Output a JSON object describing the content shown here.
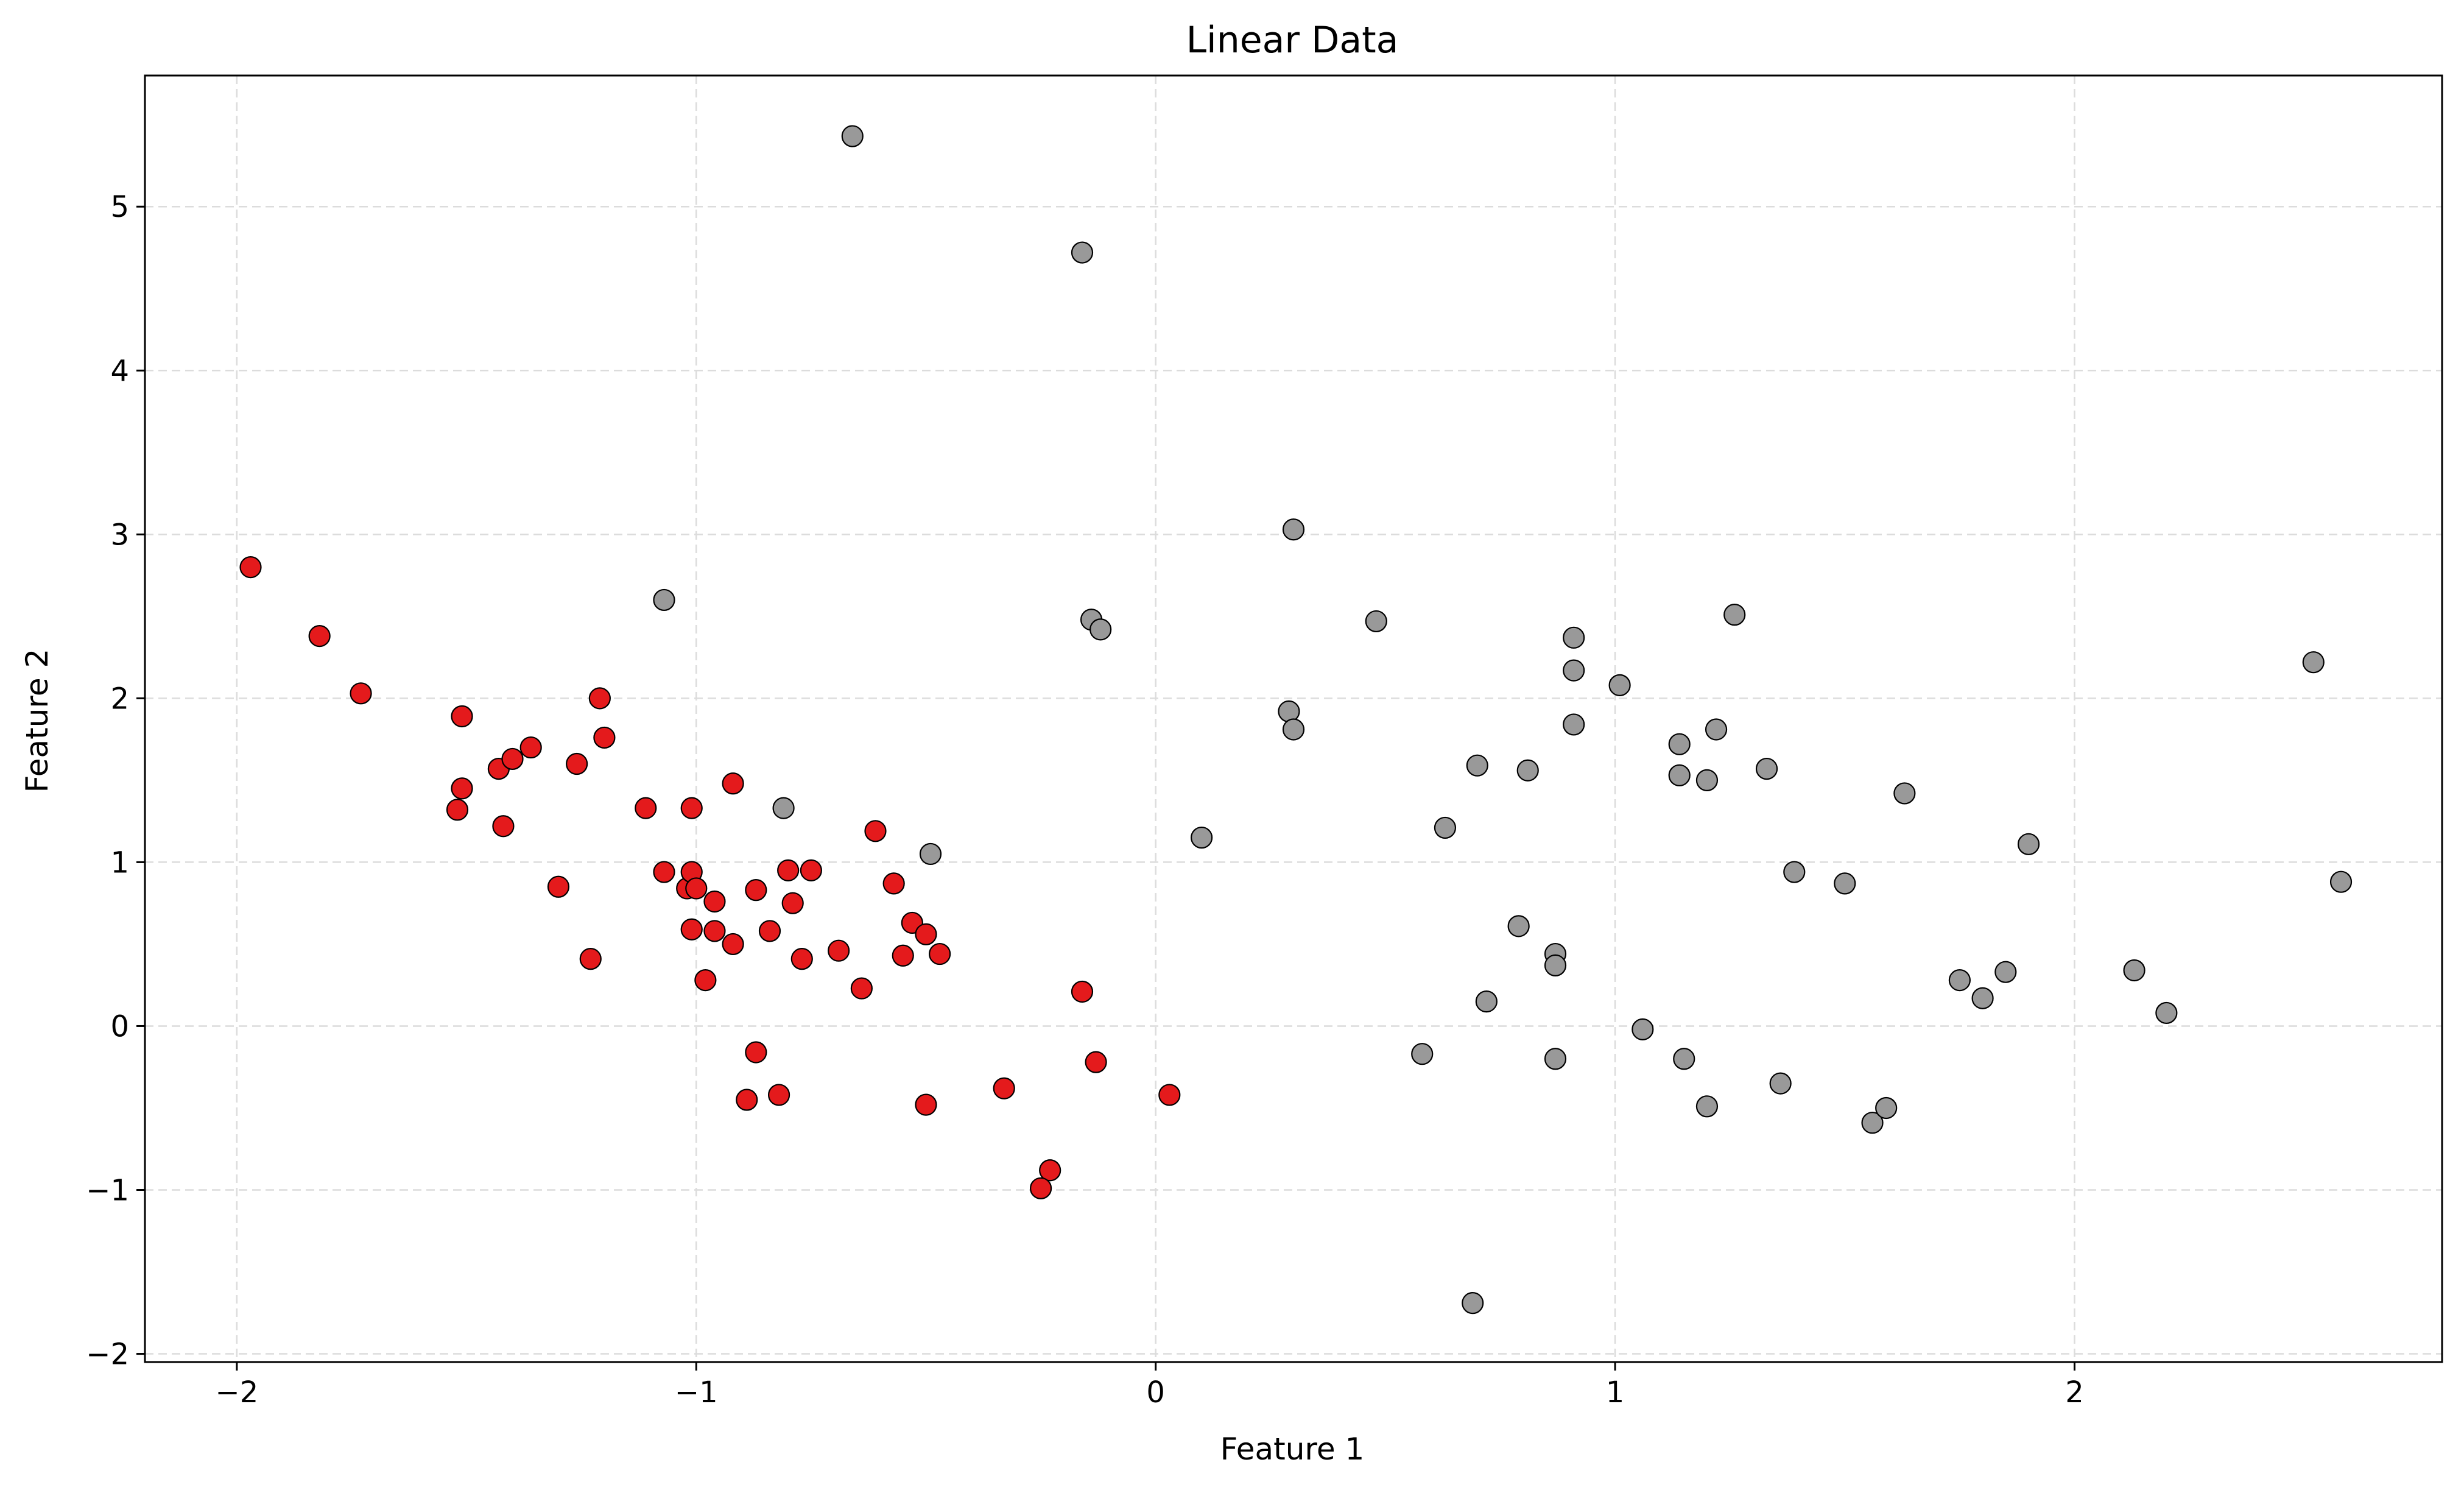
{
  "chart_data": {
    "type": "scatter",
    "title": "Linear Data",
    "xlabel": "Feature 1",
    "ylabel": "Feature 2",
    "xlim": [
      -2.2,
      2.8
    ],
    "ylim": [
      -2.05,
      5.8
    ],
    "xticks": [
      -2,
      -1,
      0,
      1,
      2
    ],
    "yticks": [
      -2,
      -1,
      0,
      1,
      2,
      3,
      4,
      5
    ],
    "xtick_labels": [
      "−2",
      "−1",
      "0",
      "1",
      "2"
    ],
    "ytick_labels": [
      "−2",
      "−1",
      "0",
      "1",
      "2",
      "3",
      "4",
      "5"
    ],
    "grid": true,
    "series": [
      {
        "color": "#e41a1c",
        "points": [
          [
            -1.97,
            2.8
          ],
          [
            -1.82,
            2.38
          ],
          [
            -1.73,
            2.03
          ],
          [
            -1.51,
            1.89
          ],
          [
            -1.51,
            1.45
          ],
          [
            -1.52,
            1.32
          ],
          [
            -1.43,
            1.57
          ],
          [
            -1.4,
            1.63
          ],
          [
            -1.36,
            1.7
          ],
          [
            -1.42,
            1.22
          ],
          [
            -1.3,
            0.85
          ],
          [
            -1.26,
            1.6
          ],
          [
            -1.21,
            2.0
          ],
          [
            -1.2,
            1.76
          ],
          [
            -1.23,
            0.41
          ],
          [
            -1.11,
            1.33
          ],
          [
            -1.07,
            0.94
          ],
          [
            -1.02,
            0.84
          ],
          [
            -1.01,
            0.94
          ],
          [
            -1.01,
            1.33
          ],
          [
            -1.0,
            0.84
          ],
          [
            -1.01,
            0.59
          ],
          [
            -0.98,
            0.28
          ],
          [
            -0.96,
            0.76
          ],
          [
            -0.96,
            0.58
          ],
          [
            -0.92,
            1.48
          ],
          [
            -0.92,
            0.5
          ],
          [
            -0.87,
            0.83
          ],
          [
            -0.84,
            0.58
          ],
          [
            -0.8,
            0.95
          ],
          [
            -0.79,
            0.75
          ],
          [
            -0.77,
            0.41
          ],
          [
            -0.75,
            0.95
          ],
          [
            -0.87,
            -0.16
          ],
          [
            -0.89,
            -0.45
          ],
          [
            -0.82,
            -0.42
          ],
          [
            -0.69,
            0.46
          ],
          [
            -0.64,
            0.23
          ],
          [
            -0.61,
            1.19
          ],
          [
            -0.57,
            0.87
          ],
          [
            -0.55,
            0.43
          ],
          [
            -0.53,
            0.63
          ],
          [
            -0.5,
            0.56
          ],
          [
            -0.47,
            0.44
          ],
          [
            -0.5,
            -0.48
          ],
          [
            -0.33,
            -0.38
          ],
          [
            -0.16,
            0.21
          ],
          [
            -0.13,
            -0.22
          ],
          [
            -0.23,
            -0.88
          ],
          [
            -0.25,
            -0.99
          ],
          [
            0.03,
            -0.42
          ]
        ]
      },
      {
        "color": "#999999",
        "points": [
          [
            -0.66,
            5.43
          ],
          [
            -0.16,
            4.72
          ],
          [
            0.3,
            3.03
          ],
          [
            -1.07,
            2.6
          ],
          [
            -0.14,
            2.48
          ],
          [
            -0.12,
            2.42
          ],
          [
            0.48,
            2.47
          ],
          [
            0.29,
            1.92
          ],
          [
            0.3,
            1.81
          ],
          [
            -0.81,
            1.33
          ],
          [
            -0.49,
            1.05
          ],
          [
            0.1,
            1.15
          ],
          [
            0.63,
            1.21
          ],
          [
            0.7,
            1.59
          ],
          [
            0.81,
            1.56
          ],
          [
            0.91,
            2.37
          ],
          [
            0.91,
            2.17
          ],
          [
            0.91,
            1.84
          ],
          [
            1.01,
            2.08
          ],
          [
            1.14,
            1.72
          ],
          [
            1.14,
            1.53
          ],
          [
            1.2,
            1.5
          ],
          [
            1.22,
            1.81
          ],
          [
            1.26,
            2.51
          ],
          [
            1.33,
            1.57
          ],
          [
            1.39,
            0.94
          ],
          [
            1.5,
            0.87
          ],
          [
            1.63,
            1.42
          ],
          [
            1.9,
            1.11
          ],
          [
            2.52,
            2.22
          ],
          [
            2.58,
            0.88
          ],
          [
            0.79,
            0.61
          ],
          [
            0.87,
            0.44
          ],
          [
            0.87,
            0.37
          ],
          [
            0.72,
            0.15
          ],
          [
            0.58,
            -0.17
          ],
          [
            0.87,
            -0.2
          ],
          [
            1.06,
            -0.02
          ],
          [
            1.15,
            -0.2
          ],
          [
            1.2,
            -0.49
          ],
          [
            1.36,
            -0.35
          ],
          [
            1.56,
            -0.59
          ],
          [
            1.59,
            -0.5
          ],
          [
            1.75,
            0.28
          ],
          [
            1.8,
            0.17
          ],
          [
            1.85,
            0.33
          ],
          [
            2.13,
            0.34
          ],
          [
            2.2,
            0.08
          ],
          [
            0.69,
            -1.69
          ]
        ]
      }
    ]
  }
}
